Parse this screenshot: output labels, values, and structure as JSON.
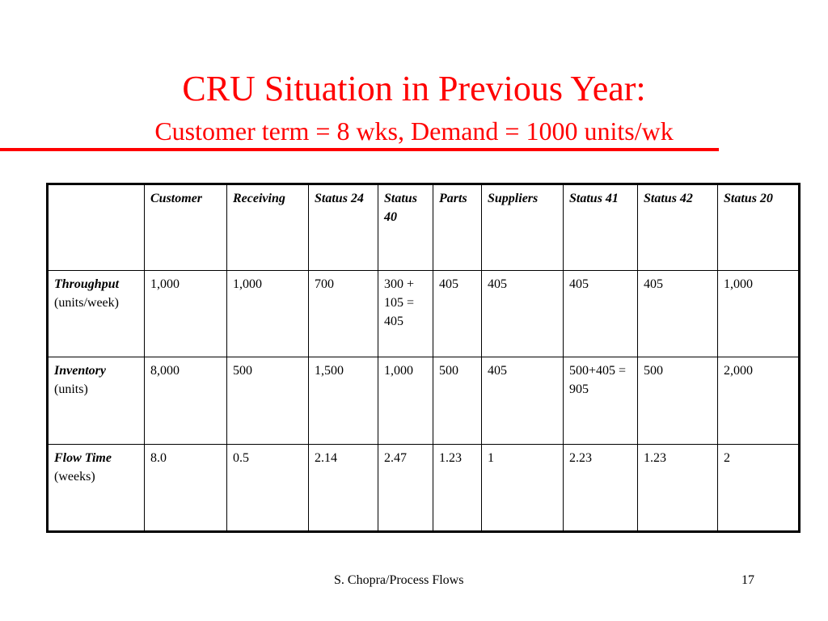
{
  "slide": {
    "title": "CRU Situation in Previous Year:",
    "subtitle": "Customer term = 8 wks, Demand = 1000 units/wk",
    "footer": "S. Chopra/Process Flows",
    "page_number": "17"
  },
  "table": {
    "columns": [
      "",
      "Customer",
      "Receiving",
      "Status 24",
      "Status 40",
      "Parts",
      "Suppliers",
      "Status 41",
      "Status 42",
      "Status 20"
    ],
    "rows": [
      {
        "name": "Throughput",
        "unit": "(units/week)",
        "cells": [
          "1,000",
          "1,000",
          "700",
          "300 + 105 = 405",
          "405",
          "405",
          "405",
          "405",
          "1,000"
        ]
      },
      {
        "name": "Inventory",
        "unit": "(units)",
        "cells": [
          "8,000",
          "500",
          "1,500",
          "1,000",
          "500",
          "405",
          "500+405 = 905",
          "500",
          "2,000"
        ]
      },
      {
        "name": "Flow Time",
        "unit": "(weeks)",
        "cells": [
          "8.0",
          "0.5",
          "2.14",
          "2.47",
          "1.23",
          "1",
          "2.23",
          "1.23",
          "2"
        ]
      }
    ]
  },
  "colors": {
    "title": "#ff0000",
    "text": "#000000",
    "background": "#ffffff"
  }
}
